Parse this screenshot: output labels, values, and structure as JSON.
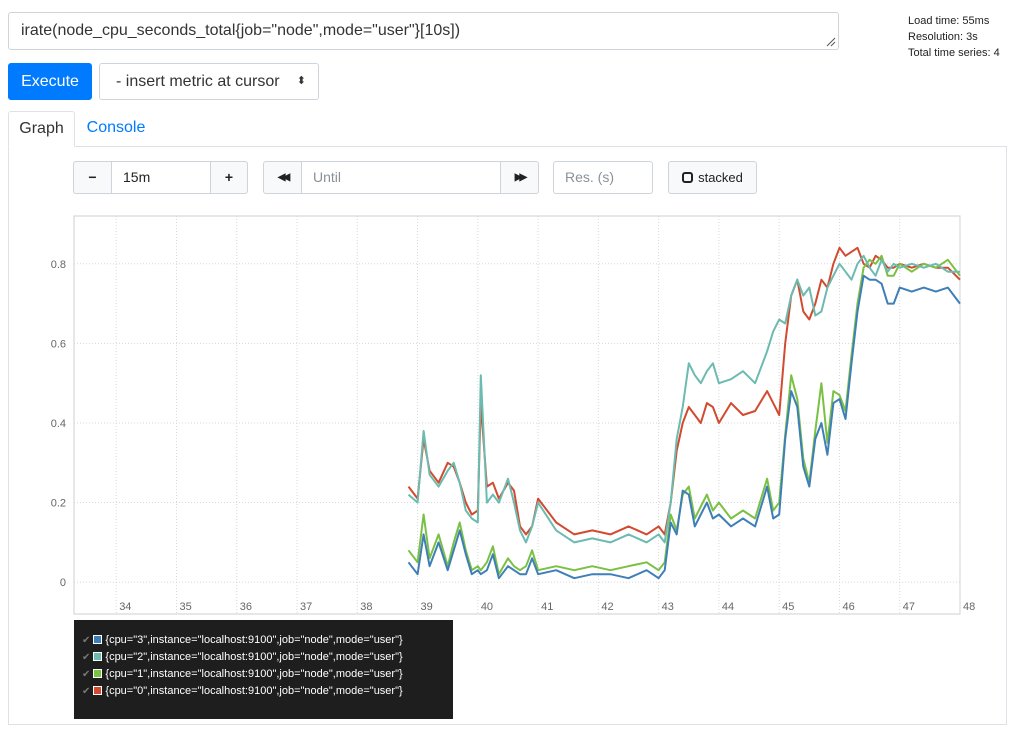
{
  "query": {
    "expression": "irate(node_cpu_seconds_total{job=\"node\",mode=\"user\"}[10s])"
  },
  "stats": {
    "load_time": "Load time: 55ms",
    "resolution": "Resolution: 3s",
    "total_series": "Total time series: 4"
  },
  "toolbar": {
    "execute_label": "Execute",
    "metric_select_label": "- insert metric at cursor",
    "metric_select_caret": "⬍"
  },
  "tabs": [
    {
      "label": "Graph",
      "active": true
    },
    {
      "label": "Console",
      "active": false
    }
  ],
  "graph_controls": {
    "minus_label": "−",
    "range_value": "15m",
    "plus_label": "+",
    "back_label": "◀◀",
    "until_placeholder": "Until",
    "forward_label": "▶▶",
    "resolution_placeholder": "Res. (s)",
    "stacked_label": "stacked"
  },
  "colors": {
    "accent": "#007bff",
    "series_cpu3": "#3f7fb8",
    "series_cpu2": "#6bbbb0",
    "series_cpu1": "#7ac143",
    "series_cpu0": "#d24a2f"
  },
  "legend": [
    {
      "label": "{cpu=\"3\",instance=\"localhost:9100\",job=\"node\",mode=\"user\"}",
      "color": "#3f7fb8"
    },
    {
      "label": "{cpu=\"2\",instance=\"localhost:9100\",job=\"node\",mode=\"user\"}",
      "color": "#6bbbb0"
    },
    {
      "label": "{cpu=\"1\",instance=\"localhost:9100\",job=\"node\",mode=\"user\"}",
      "color": "#7ac143"
    },
    {
      "label": "{cpu=\"0\",instance=\"localhost:9100\",job=\"node\",mode=\"user\"}",
      "color": "#d24a2f"
    }
  ],
  "chart_data": {
    "type": "line",
    "xlim": [
      33.3,
      48
    ],
    "ylim": [
      -0.08,
      0.92
    ],
    "x_ticks": [
      "34",
      "35",
      "36",
      "37",
      "38",
      "39",
      "40",
      "41",
      "42",
      "43",
      "44",
      "45",
      "46",
      "47",
      "48"
    ],
    "y_ticks": [
      "0",
      "0.2",
      "0.4",
      "0.6",
      "0.8"
    ],
    "grid": true,
    "series": [
      {
        "name": "{cpu=\"3\",instance=\"localhost:9100\",job=\"node\",mode=\"user\"}",
        "color": "#3f7fb8",
        "x": [
          38.85,
          39.0,
          39.1,
          39.2,
          39.35,
          39.5,
          39.6,
          39.7,
          39.8,
          39.9,
          40.0,
          40.05,
          40.15,
          40.25,
          40.35,
          40.5,
          40.6,
          40.7,
          40.8,
          40.9,
          41.0,
          41.3,
          41.6,
          41.9,
          42.2,
          42.5,
          42.8,
          43.0,
          43.1,
          43.2,
          43.3,
          43.4,
          43.5,
          43.6,
          43.7,
          43.8,
          43.9,
          44.0,
          44.2,
          44.4,
          44.6,
          44.8,
          44.9,
          45.0,
          45.1,
          45.2,
          45.3,
          45.4,
          45.5,
          45.6,
          45.7,
          45.8,
          45.9,
          46.0,
          46.1,
          46.2,
          46.3,
          46.4,
          46.5,
          46.6,
          46.7,
          46.8,
          46.9,
          47.0,
          47.2,
          47.4,
          47.6,
          47.8,
          48.0
        ],
        "y": [
          0.05,
          0.02,
          0.12,
          0.04,
          0.1,
          0.03,
          0.08,
          0.13,
          0.07,
          0.02,
          0.03,
          0.02,
          0.03,
          0.07,
          0.01,
          0.04,
          0.03,
          0.02,
          0.02,
          0.06,
          0.02,
          0.03,
          0.01,
          0.02,
          0.02,
          0.01,
          0.03,
          0.01,
          0.03,
          0.15,
          0.12,
          0.23,
          0.22,
          0.14,
          0.17,
          0.2,
          0.16,
          0.17,
          0.14,
          0.16,
          0.14,
          0.24,
          0.16,
          0.17,
          0.36,
          0.48,
          0.44,
          0.29,
          0.24,
          0.36,
          0.4,
          0.32,
          0.45,
          0.46,
          0.41,
          0.55,
          0.68,
          0.77,
          0.76,
          0.76,
          0.75,
          0.7,
          0.7,
          0.74,
          0.73,
          0.74,
          0.73,
          0.74,
          0.7
        ]
      },
      {
        "name": "{cpu=\"2\",instance=\"localhost:9100\",job=\"node\",mode=\"user\"}",
        "color": "#6bbbb0",
        "x": [
          38.85,
          39.0,
          39.1,
          39.2,
          39.35,
          39.5,
          39.6,
          39.7,
          39.8,
          39.9,
          40.0,
          40.05,
          40.15,
          40.25,
          40.35,
          40.5,
          40.6,
          40.7,
          40.8,
          40.9,
          41.0,
          41.3,
          41.6,
          41.9,
          42.2,
          42.5,
          42.8,
          43.0,
          43.1,
          43.2,
          43.3,
          43.4,
          43.5,
          43.6,
          43.7,
          43.8,
          43.9,
          44.0,
          44.2,
          44.4,
          44.6,
          44.8,
          44.9,
          45.0,
          45.1,
          45.2,
          45.3,
          45.4,
          45.5,
          45.6,
          45.7,
          45.8,
          45.9,
          46.0,
          46.1,
          46.2,
          46.3,
          46.4,
          46.5,
          46.6,
          46.7,
          46.8,
          46.9,
          47.0,
          47.2,
          47.4,
          47.6,
          47.8,
          48.0
        ],
        "y": [
          0.22,
          0.2,
          0.38,
          0.27,
          0.24,
          0.28,
          0.3,
          0.25,
          0.18,
          0.16,
          0.15,
          0.52,
          0.2,
          0.22,
          0.2,
          0.26,
          0.2,
          0.13,
          0.1,
          0.14,
          0.2,
          0.13,
          0.1,
          0.11,
          0.1,
          0.12,
          0.1,
          0.12,
          0.1,
          0.2,
          0.36,
          0.44,
          0.55,
          0.52,
          0.5,
          0.53,
          0.55,
          0.5,
          0.51,
          0.53,
          0.5,
          0.58,
          0.63,
          0.66,
          0.65,
          0.72,
          0.76,
          0.72,
          0.74,
          0.67,
          0.68,
          0.74,
          0.77,
          0.8,
          0.78,
          0.76,
          0.8,
          0.82,
          0.79,
          0.77,
          0.81,
          0.78,
          0.8,
          0.79,
          0.8,
          0.79,
          0.8,
          0.78,
          0.78
        ]
      },
      {
        "name": "{cpu=\"1\",instance=\"localhost:9100\",job=\"node\",mode=\"user\"}",
        "color": "#7ac143",
        "x": [
          38.85,
          39.0,
          39.1,
          39.2,
          39.35,
          39.5,
          39.6,
          39.7,
          39.8,
          39.9,
          40.0,
          40.05,
          40.15,
          40.25,
          40.35,
          40.5,
          40.6,
          40.7,
          40.8,
          40.9,
          41.0,
          41.3,
          41.6,
          41.9,
          42.2,
          42.5,
          42.8,
          43.0,
          43.1,
          43.2,
          43.3,
          43.4,
          43.5,
          43.6,
          43.7,
          43.8,
          43.9,
          44.0,
          44.2,
          44.4,
          44.6,
          44.8,
          44.9,
          45.0,
          45.1,
          45.2,
          45.3,
          45.4,
          45.5,
          45.6,
          45.7,
          45.8,
          45.9,
          46.0,
          46.1,
          46.2,
          46.3,
          46.4,
          46.5,
          46.6,
          46.7,
          46.8,
          46.9,
          47.0,
          47.2,
          47.4,
          47.6,
          47.8,
          48.0
        ],
        "y": [
          0.08,
          0.05,
          0.17,
          0.06,
          0.12,
          0.04,
          0.1,
          0.15,
          0.08,
          0.03,
          0.04,
          0.03,
          0.05,
          0.09,
          0.02,
          0.06,
          0.04,
          0.03,
          0.04,
          0.08,
          0.03,
          0.04,
          0.03,
          0.04,
          0.03,
          0.04,
          0.05,
          0.03,
          0.05,
          0.17,
          0.13,
          0.22,
          0.24,
          0.16,
          0.19,
          0.22,
          0.18,
          0.2,
          0.16,
          0.18,
          0.16,
          0.26,
          0.18,
          0.2,
          0.37,
          0.52,
          0.46,
          0.31,
          0.25,
          0.38,
          0.5,
          0.35,
          0.48,
          0.47,
          0.43,
          0.57,
          0.7,
          0.79,
          0.81,
          0.8,
          0.82,
          0.77,
          0.77,
          0.8,
          0.78,
          0.8,
          0.79,
          0.81,
          0.77
        ]
      },
      {
        "name": "{cpu=\"0\",instance=\"localhost:9100\",job=\"node\",mode=\"user\"}",
        "color": "#d24a2f",
        "x": [
          38.85,
          39.0,
          39.1,
          39.2,
          39.35,
          39.5,
          39.6,
          39.7,
          39.8,
          39.9,
          40.0,
          40.05,
          40.15,
          40.25,
          40.35,
          40.5,
          40.6,
          40.7,
          40.8,
          40.9,
          41.0,
          41.3,
          41.6,
          41.9,
          42.2,
          42.5,
          42.8,
          43.0,
          43.1,
          43.2,
          43.3,
          43.4,
          43.5,
          43.6,
          43.7,
          43.8,
          43.9,
          44.0,
          44.2,
          44.4,
          44.6,
          44.8,
          44.9,
          45.0,
          45.1,
          45.2,
          45.3,
          45.4,
          45.5,
          45.6,
          45.7,
          45.8,
          45.9,
          46.0,
          46.1,
          46.2,
          46.3,
          46.4,
          46.5,
          46.6,
          46.7,
          46.8,
          46.9,
          47.0,
          47.2,
          47.4,
          47.6,
          47.8,
          48.0
        ],
        "y": [
          0.24,
          0.21,
          0.36,
          0.28,
          0.25,
          0.3,
          0.29,
          0.25,
          0.2,
          0.17,
          0.18,
          0.45,
          0.24,
          0.25,
          0.21,
          0.25,
          0.23,
          0.14,
          0.12,
          0.14,
          0.21,
          0.15,
          0.12,
          0.13,
          0.12,
          0.14,
          0.12,
          0.14,
          0.12,
          0.2,
          0.33,
          0.4,
          0.44,
          0.42,
          0.4,
          0.45,
          0.44,
          0.4,
          0.45,
          0.42,
          0.43,
          0.48,
          0.45,
          0.42,
          0.6,
          0.72,
          0.76,
          0.68,
          0.66,
          0.7,
          0.76,
          0.74,
          0.8,
          0.84,
          0.82,
          0.83,
          0.84,
          0.8,
          0.79,
          0.82,
          0.81,
          0.79,
          0.79,
          0.8,
          0.79,
          0.8,
          0.79,
          0.79,
          0.76
        ]
      }
    ]
  }
}
